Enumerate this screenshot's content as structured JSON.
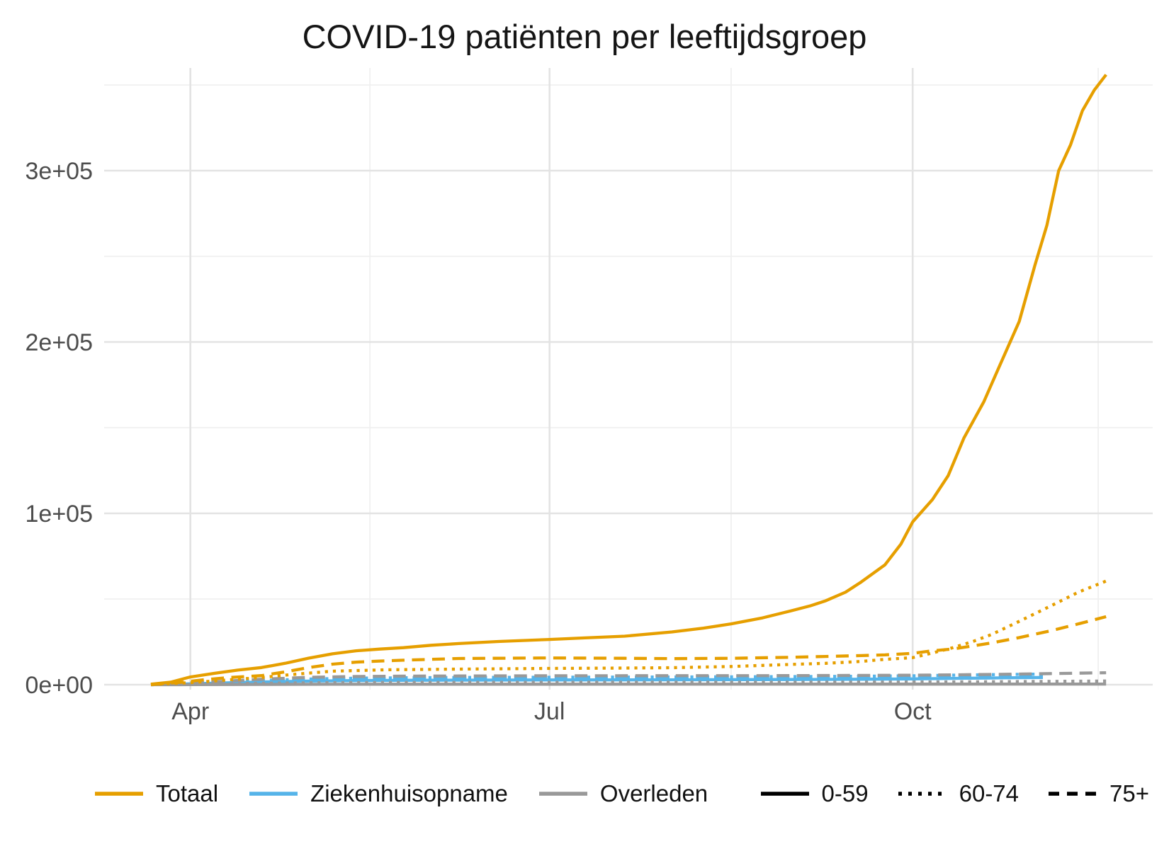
{
  "title": "COVID-19 patiënten per leeftijdsgroep",
  "colors": {
    "totaal": "#E69F00",
    "ziekenhuisopname": "#56B4E9",
    "overleden": "#999999",
    "grid_major": "#E3E3E3",
    "grid_minor": "#F0F0F0",
    "axis_text": "#4D4D4D",
    "legend_linetype": "#000000",
    "background": "#FFFFFF"
  },
  "legend": {
    "color_items": [
      {
        "label": "Totaal",
        "color": "#E69F00"
      },
      {
        "label": "Ziekenhuisopname",
        "color": "#56B4E9"
      },
      {
        "label": "Overleden",
        "color": "#999999"
      }
    ],
    "linetype_items": [
      {
        "label": "0-59",
        "linetype": "solid"
      },
      {
        "label": "60-74",
        "linetype": "dotted"
      },
      {
        "label": "75+",
        "linetype": "dashed"
      }
    ]
  },
  "chart_data": {
    "type": "line",
    "title": "COVID-19 patiënten per leeftijdsgroep",
    "x_axis": {
      "tick_labels": [
        "Apr",
        "Jul",
        "Oct"
      ],
      "ticks": [
        {
          "label": "Apr",
          "day": 10
        },
        {
          "label": "Jul",
          "day": 101
        },
        {
          "label": "Oct",
          "day": 193
        }
      ],
      "minor_days": [
        55.5,
        147,
        240
      ],
      "domain_days": [
        0,
        242
      ],
      "start_note": "day 0 = late March 2020, data ends mid/late November 2020"
    },
    "y_axis": {
      "tick_labels": [
        "0e+00",
        "1e+05",
        "2e+05",
        "3e+05"
      ],
      "ticks": [
        {
          "label": "0e+00",
          "value": 0
        },
        {
          "label": "1e+05",
          "value": 100000
        },
        {
          "label": "2e+05",
          "value": 200000
        },
        {
          "label": "3e+05",
          "value": 300000
        }
      ],
      "minor_values": [
        50000,
        150000,
        250000,
        350000
      ],
      "ylim": [
        0,
        360000
      ],
      "grid": true
    },
    "legend_position": "bottom",
    "series": [
      {
        "name": "Totaal 0-59",
        "group": "Totaal",
        "age_group": "0-59",
        "color": "#E69F00",
        "linetype": "solid",
        "points": [
          [
            0,
            300
          ],
          [
            5,
            1500
          ],
          [
            10,
            4500
          ],
          [
            16,
            6600
          ],
          [
            22,
            8500
          ],
          [
            28,
            10000
          ],
          [
            34,
            12500
          ],
          [
            40,
            15500
          ],
          [
            46,
            18000
          ],
          [
            52,
            19800
          ],
          [
            58,
            20800
          ],
          [
            64,
            21600
          ],
          [
            71,
            23000
          ],
          [
            78,
            24000
          ],
          [
            88,
            25200
          ],
          [
            101,
            26400
          ],
          [
            110,
            27300
          ],
          [
            120,
            28300
          ],
          [
            132,
            30800
          ],
          [
            140,
            33000
          ],
          [
            147,
            35500
          ],
          [
            155,
            39000
          ],
          [
            162,
            43000
          ],
          [
            167,
            46000
          ],
          [
            171,
            49000
          ],
          [
            176,
            54000
          ],
          [
            180,
            60000
          ],
          [
            186,
            70000
          ],
          [
            190,
            82000
          ],
          [
            193,
            95000
          ],
          [
            198,
            108000
          ],
          [
            202,
            122000
          ],
          [
            206,
            144000
          ],
          [
            211,
            165000
          ],
          [
            215,
            186000
          ],
          [
            220,
            212000
          ],
          [
            224,
            245000
          ],
          [
            227,
            268000
          ],
          [
            230,
            300000
          ],
          [
            233,
            315000
          ],
          [
            236,
            335000
          ],
          [
            239,
            347000
          ],
          [
            242,
            356000
          ]
        ]
      },
      {
        "name": "Totaal 60-74",
        "group": "Totaal",
        "age_group": "60-74",
        "color": "#E69F00",
        "linetype": "dotted",
        "points": [
          [
            0,
            100
          ],
          [
            10,
            1200
          ],
          [
            16,
            2200
          ],
          [
            28,
            4200
          ],
          [
            36,
            6000
          ],
          [
            46,
            7900
          ],
          [
            60,
            8700
          ],
          [
            78,
            9100
          ],
          [
            101,
            9500
          ],
          [
            120,
            9700
          ],
          [
            132,
            9900
          ],
          [
            147,
            10600
          ],
          [
            162,
            11800
          ],
          [
            171,
            12500
          ],
          [
            180,
            13600
          ],
          [
            186,
            14800
          ],
          [
            193,
            15800
          ],
          [
            198,
            18500
          ],
          [
            203,
            21500
          ],
          [
            208,
            25000
          ],
          [
            213,
            29300
          ],
          [
            220,
            37000
          ],
          [
            228,
            46000
          ],
          [
            235,
            54000
          ],
          [
            242,
            60500
          ]
        ]
      },
      {
        "name": "Totaal 75+",
        "group": "Totaal",
        "age_group": "75+",
        "color": "#E69F00",
        "linetype": "dashed",
        "points": [
          [
            0,
            100
          ],
          [
            8,
            1500
          ],
          [
            14,
            3000
          ],
          [
            20,
            4200
          ],
          [
            28,
            5300
          ],
          [
            34,
            7500
          ],
          [
            40,
            10000
          ],
          [
            46,
            12000
          ],
          [
            52,
            13200
          ],
          [
            58,
            13800
          ],
          [
            64,
            14300
          ],
          [
            78,
            15300
          ],
          [
            101,
            15600
          ],
          [
            120,
            15400
          ],
          [
            132,
            15200
          ],
          [
            147,
            15400
          ],
          [
            162,
            16000
          ],
          [
            171,
            16500
          ],
          [
            180,
            17000
          ],
          [
            186,
            17400
          ],
          [
            193,
            18300
          ],
          [
            198,
            19800
          ],
          [
            203,
            20800
          ],
          [
            208,
            22500
          ],
          [
            213,
            24400
          ],
          [
            220,
            27500
          ],
          [
            228,
            31500
          ],
          [
            235,
            35500
          ],
          [
            242,
            39700
          ]
        ]
      },
      {
        "name": "Ziekenhuisopname 0-59",
        "group": "Ziekenhuisopname",
        "age_group": "0-59",
        "color": "#56B4E9",
        "linetype": "solid",
        "points": [
          [
            0,
            30
          ],
          [
            10,
            500
          ],
          [
            20,
            1100
          ],
          [
            28,
            1600
          ],
          [
            40,
            2100
          ],
          [
            52,
            2400
          ],
          [
            64,
            2550
          ],
          [
            78,
            2650
          ],
          [
            101,
            2750
          ],
          [
            132,
            2850
          ],
          [
            162,
            3000
          ],
          [
            180,
            3200
          ],
          [
            193,
            3400
          ],
          [
            205,
            3700
          ],
          [
            215,
            3950
          ],
          [
            226,
            4200
          ]
        ]
      },
      {
        "name": "Ziekenhuisopname 60-74",
        "group": "Ziekenhuisopname",
        "age_group": "60-74",
        "color": "#56B4E9",
        "linetype": "dotted",
        "points": [
          [
            0,
            30
          ],
          [
            10,
            700
          ],
          [
            20,
            1700
          ],
          [
            28,
            2500
          ],
          [
            40,
            3300
          ],
          [
            52,
            3800
          ],
          [
            64,
            4050
          ],
          [
            78,
            4200
          ],
          [
            101,
            4350
          ],
          [
            132,
            4500
          ],
          [
            162,
            4700
          ],
          [
            180,
            4900
          ],
          [
            193,
            5200
          ],
          [
            205,
            5600
          ],
          [
            215,
            5900
          ],
          [
            226,
            6200
          ]
        ]
      },
      {
        "name": "Ziekenhuisopname 75+",
        "group": "Ziekenhuisopname",
        "age_group": "75+",
        "color": "#56B4E9",
        "linetype": "dashed",
        "points": [
          [
            0,
            20
          ],
          [
            10,
            600
          ],
          [
            20,
            1500
          ],
          [
            28,
            2200
          ],
          [
            40,
            3000
          ],
          [
            52,
            3500
          ],
          [
            64,
            3750
          ],
          [
            78,
            3900
          ],
          [
            101,
            4000
          ],
          [
            132,
            4100
          ],
          [
            162,
            4250
          ],
          [
            180,
            4400
          ],
          [
            193,
            4650
          ],
          [
            205,
            4950
          ],
          [
            215,
            5200
          ],
          [
            226,
            5400
          ]
        ]
      },
      {
        "name": "Overleden 0-59",
        "group": "Overleden",
        "age_group": "0-59",
        "color": "#999999",
        "linetype": "solid",
        "points": [
          [
            0,
            2
          ],
          [
            10,
            60
          ],
          [
            20,
            130
          ],
          [
            28,
            180
          ],
          [
            46,
            240
          ],
          [
            64,
            270
          ],
          [
            101,
            290
          ],
          [
            162,
            310
          ],
          [
            193,
            330
          ],
          [
            220,
            360
          ],
          [
            242,
            390
          ]
        ]
      },
      {
        "name": "Overleden 60-74",
        "group": "Overleden",
        "age_group": "60-74",
        "color": "#999999",
        "linetype": "dotted",
        "points": [
          [
            0,
            5
          ],
          [
            10,
            250
          ],
          [
            20,
            600
          ],
          [
            28,
            850
          ],
          [
            40,
            1100
          ],
          [
            52,
            1250
          ],
          [
            64,
            1320
          ],
          [
            101,
            1400
          ],
          [
            162,
            1450
          ],
          [
            193,
            1550
          ],
          [
            213,
            1750
          ],
          [
            228,
            1950
          ],
          [
            242,
            2150
          ]
        ]
      },
      {
        "name": "Overleden 75+",
        "group": "Overleden",
        "age_group": "75+",
        "color": "#999999",
        "linetype": "dashed",
        "points": [
          [
            0,
            10
          ],
          [
            10,
            800
          ],
          [
            20,
            2200
          ],
          [
            28,
            3200
          ],
          [
            40,
            4300
          ],
          [
            52,
            4800
          ],
          [
            64,
            5000
          ],
          [
            78,
            5100
          ],
          [
            101,
            5200
          ],
          [
            132,
            5250
          ],
          [
            162,
            5300
          ],
          [
            180,
            5400
          ],
          [
            193,
            5550
          ],
          [
            205,
            5800
          ],
          [
            213,
            6000
          ],
          [
            221,
            6250
          ],
          [
            228,
            6500
          ],
          [
            235,
            6750
          ],
          [
            242,
            7000
          ]
        ]
      }
    ]
  }
}
